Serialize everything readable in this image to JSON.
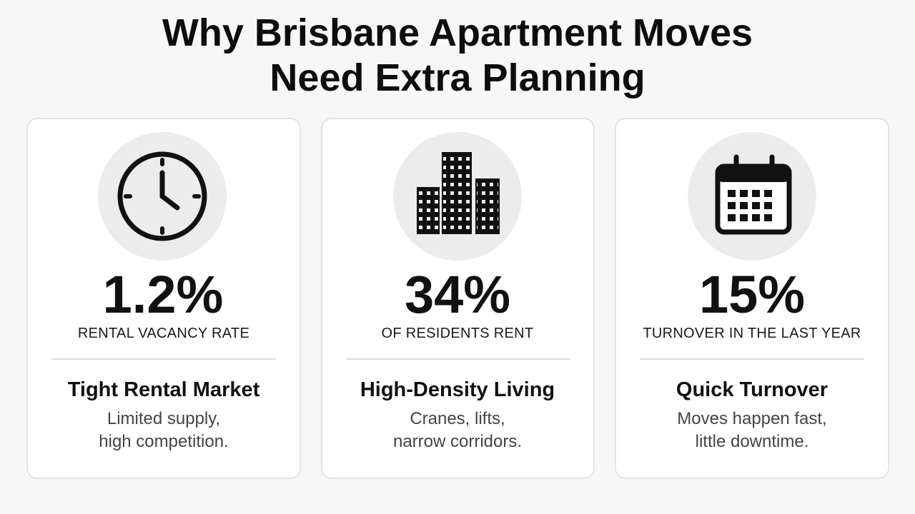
{
  "header": {
    "title_lines": [
      "Why Brisbane Apartment Moves",
      "Need Extra Planning"
    ]
  },
  "cards": [
    {
      "stat": "1.2%",
      "label": "RENTAL VACANCY RATE",
      "heading": "Tight Rental Market",
      "description_lines": [
        "Limited supply,",
        "high competition."
      ]
    },
    {
      "stat": "34%",
      "label": "OF RESIDENTS RENT",
      "heading": "High-Density Living",
      "description_lines": [
        "Cranes, lifts,",
        "narrow corridors."
      ]
    },
    {
      "stat": "15%",
      "label": "TURNOVER IN THE LAST YEAR",
      "heading": "Quick Turnover",
      "description_lines": [
        "Moves happen fast,",
        "little downtime."
      ]
    }
  ]
}
